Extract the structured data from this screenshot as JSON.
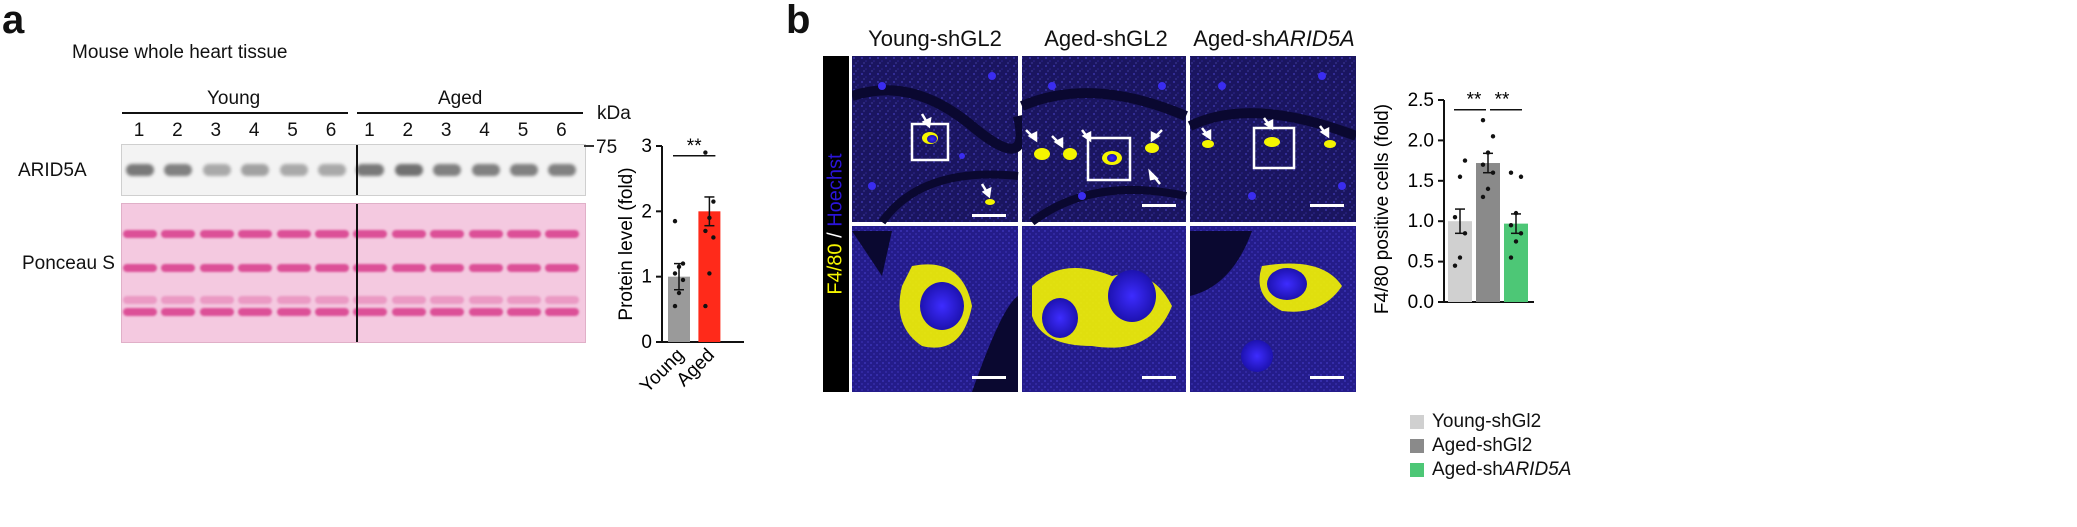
{
  "panel_a": {
    "letter": "a",
    "title": "Mouse whole heart tissue",
    "group_young": "Young",
    "group_aged": "Aged",
    "kda_label": "kDa",
    "lanes": [
      "1",
      "2",
      "3",
      "4",
      "5",
      "6",
      "1",
      "2",
      "3",
      "4",
      "5",
      "6"
    ],
    "marker": "75",
    "row_labels": {
      "arid": "ARID5A",
      "ponceau": "Ponceau S"
    },
    "colors": {
      "ponceau_bg": "#f3c6de",
      "ponceau_band": "#d9438f",
      "blot_bg": "#f2f2f2",
      "blot_band": "#6d6d6d"
    }
  },
  "panel_b": {
    "letter": "b",
    "col_headers": [
      "Young-shGL2",
      "Aged-shGL2",
      "Aged-sh"
    ],
    "col_header_italic": "ARID5A",
    "side_label_yellow": "F4/80",
    "side_label_sep": " / ",
    "side_label_blue": "Hoechst",
    "colors": {
      "yellow": "#f5f500",
      "blue": "#2b14d8"
    }
  },
  "chart_data": [
    {
      "type": "bar",
      "categories": [
        "Young",
        "Aged"
      ],
      "values": [
        1.0,
        2.0
      ],
      "errors": [
        0.2,
        0.22
      ],
      "points": [
        [
          0.55,
          0.75,
          0.95,
          1.05,
          1.15,
          1.2,
          1.85
        ],
        [
          0.55,
          1.05,
          1.6,
          1.7,
          1.9,
          2.15,
          2.9
        ]
      ],
      "colors": [
        "#9a9a9a",
        "#ff2a1a"
      ],
      "ylabel": "Protein level (fold)",
      "ylim": [
        0,
        3
      ],
      "yticks": [
        "0",
        "1",
        "2",
        "3"
      ],
      "significance": [
        "**"
      ]
    },
    {
      "type": "bar",
      "categories": [
        "Young-shGl2",
        "Aged-shGl2",
        "Aged-shARID5A"
      ],
      "values": [
        1.0,
        1.72,
        0.97
      ],
      "errors": [
        0.15,
        0.12,
        0.12
      ],
      "points": [
        [
          0.45,
          0.55,
          0.85,
          1.05,
          1.55,
          1.75
        ],
        [
          1.3,
          1.4,
          1.6,
          1.7,
          1.85,
          2.05,
          2.25
        ],
        [
          0.55,
          0.75,
          0.85,
          0.95,
          1.1,
          1.55,
          1.6
        ]
      ],
      "colors": [
        "#d0d0d0",
        "#8a8a8a",
        "#4dc776"
      ],
      "ylabel": "F4/80 positive cells (fold)",
      "ylim": [
        0,
        2.5
      ],
      "yticks": [
        "0.0",
        "0.5",
        "1.0",
        "1.5",
        "2.0",
        "2.5"
      ],
      "significance": [
        "**",
        "**"
      ],
      "legend": [
        "Young-shGl2",
        "Aged-shGl2",
        "Aged-sh"
      ],
      "legend_italic_suffix": "ARID5A",
      "legend_placement": "bottom"
    }
  ]
}
